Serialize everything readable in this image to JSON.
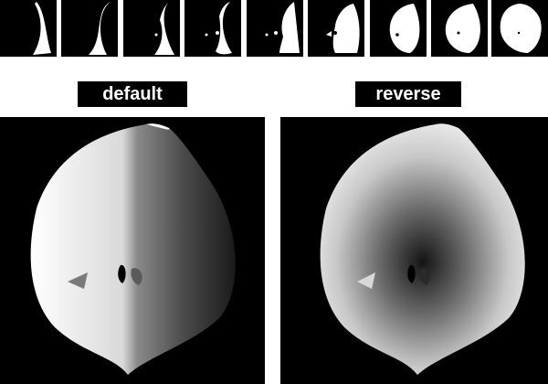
{
  "thumbnails": {
    "count": 9,
    "icon": "shape-slice-icon"
  },
  "panels": {
    "default": {
      "label": "default"
    },
    "reverse": {
      "label": "reverse"
    }
  },
  "colors": {
    "background": "#000000",
    "shape_light": "#ffffff",
    "label_text": "#ffffff"
  }
}
